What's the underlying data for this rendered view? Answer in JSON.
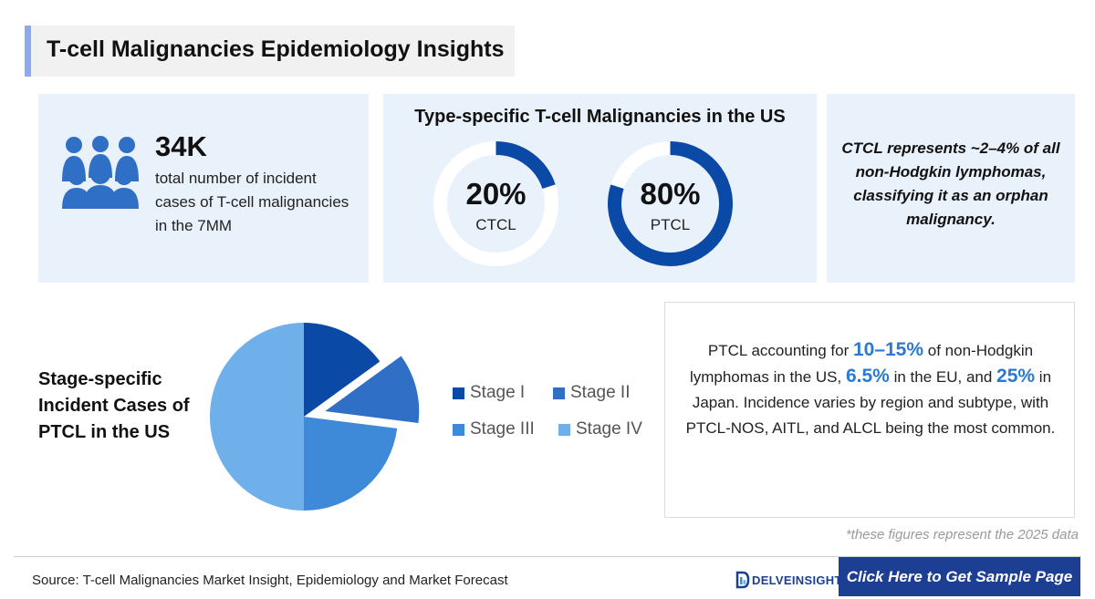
{
  "title": "T-cell Malignancies Epidemiology Insights",
  "colors": {
    "stage_i": "#0a4aa6",
    "stage_ii": "#2f6fc6",
    "stage_iii": "#3f8ad8",
    "stage_iv": "#6fb0ea",
    "donut_fill": "#0a4aa6",
    "donut_track": "#ffffff",
    "highlight": "#2a7ad1",
    "cta_bg": "#1c3f94"
  },
  "incidence": {
    "value": "34K",
    "description": "total number of incident cases of T-cell malignancies in the 7MM",
    "icon": "people-group-icon"
  },
  "type_split": {
    "title": "Type-specific T-cell Malignancies in the US",
    "items": [
      {
        "percent": "20%",
        "label": "CTCL",
        "fraction": 0.2
      },
      {
        "percent": "80%",
        "label": "PTCL",
        "fraction": 0.8
      }
    ]
  },
  "ctcl_note": "CTCL represents ~2–4% of all non-Hodgkin lymphomas, classifying it as an orphan malignancy.",
  "stage_chart": {
    "title": "Stage-specific Incident Cases of PTCL in the US"
  },
  "chart_data": {
    "type": "pie",
    "categories": [
      "Stage I",
      "Stage II",
      "Stage III",
      "Stage IV"
    ],
    "values": [
      15,
      12,
      23,
      50
    ],
    "exploded": "Stage II",
    "legend_position": "right"
  },
  "ptcl_text": {
    "p1": "PTCL accounting for ",
    "v1": "10–15%",
    "p2": " of non-Hodgkin lymphomas in the US, ",
    "v2": "6.5%",
    "p3": " in the EU, and ",
    "v3": "25%",
    "p4": " in Japan. Incidence varies by region and subtype, with PTCL-NOS, AITL, and ALCL being the most common."
  },
  "footnote": "*these figures represent the 2025 data",
  "footer": {
    "source": "Source: T-cell Malignancies Market Insight, Epidemiology and Market Forecast",
    "logo_text": "DELVEINSIGHT",
    "cta_label": "Click Here to Get Sample Page"
  }
}
